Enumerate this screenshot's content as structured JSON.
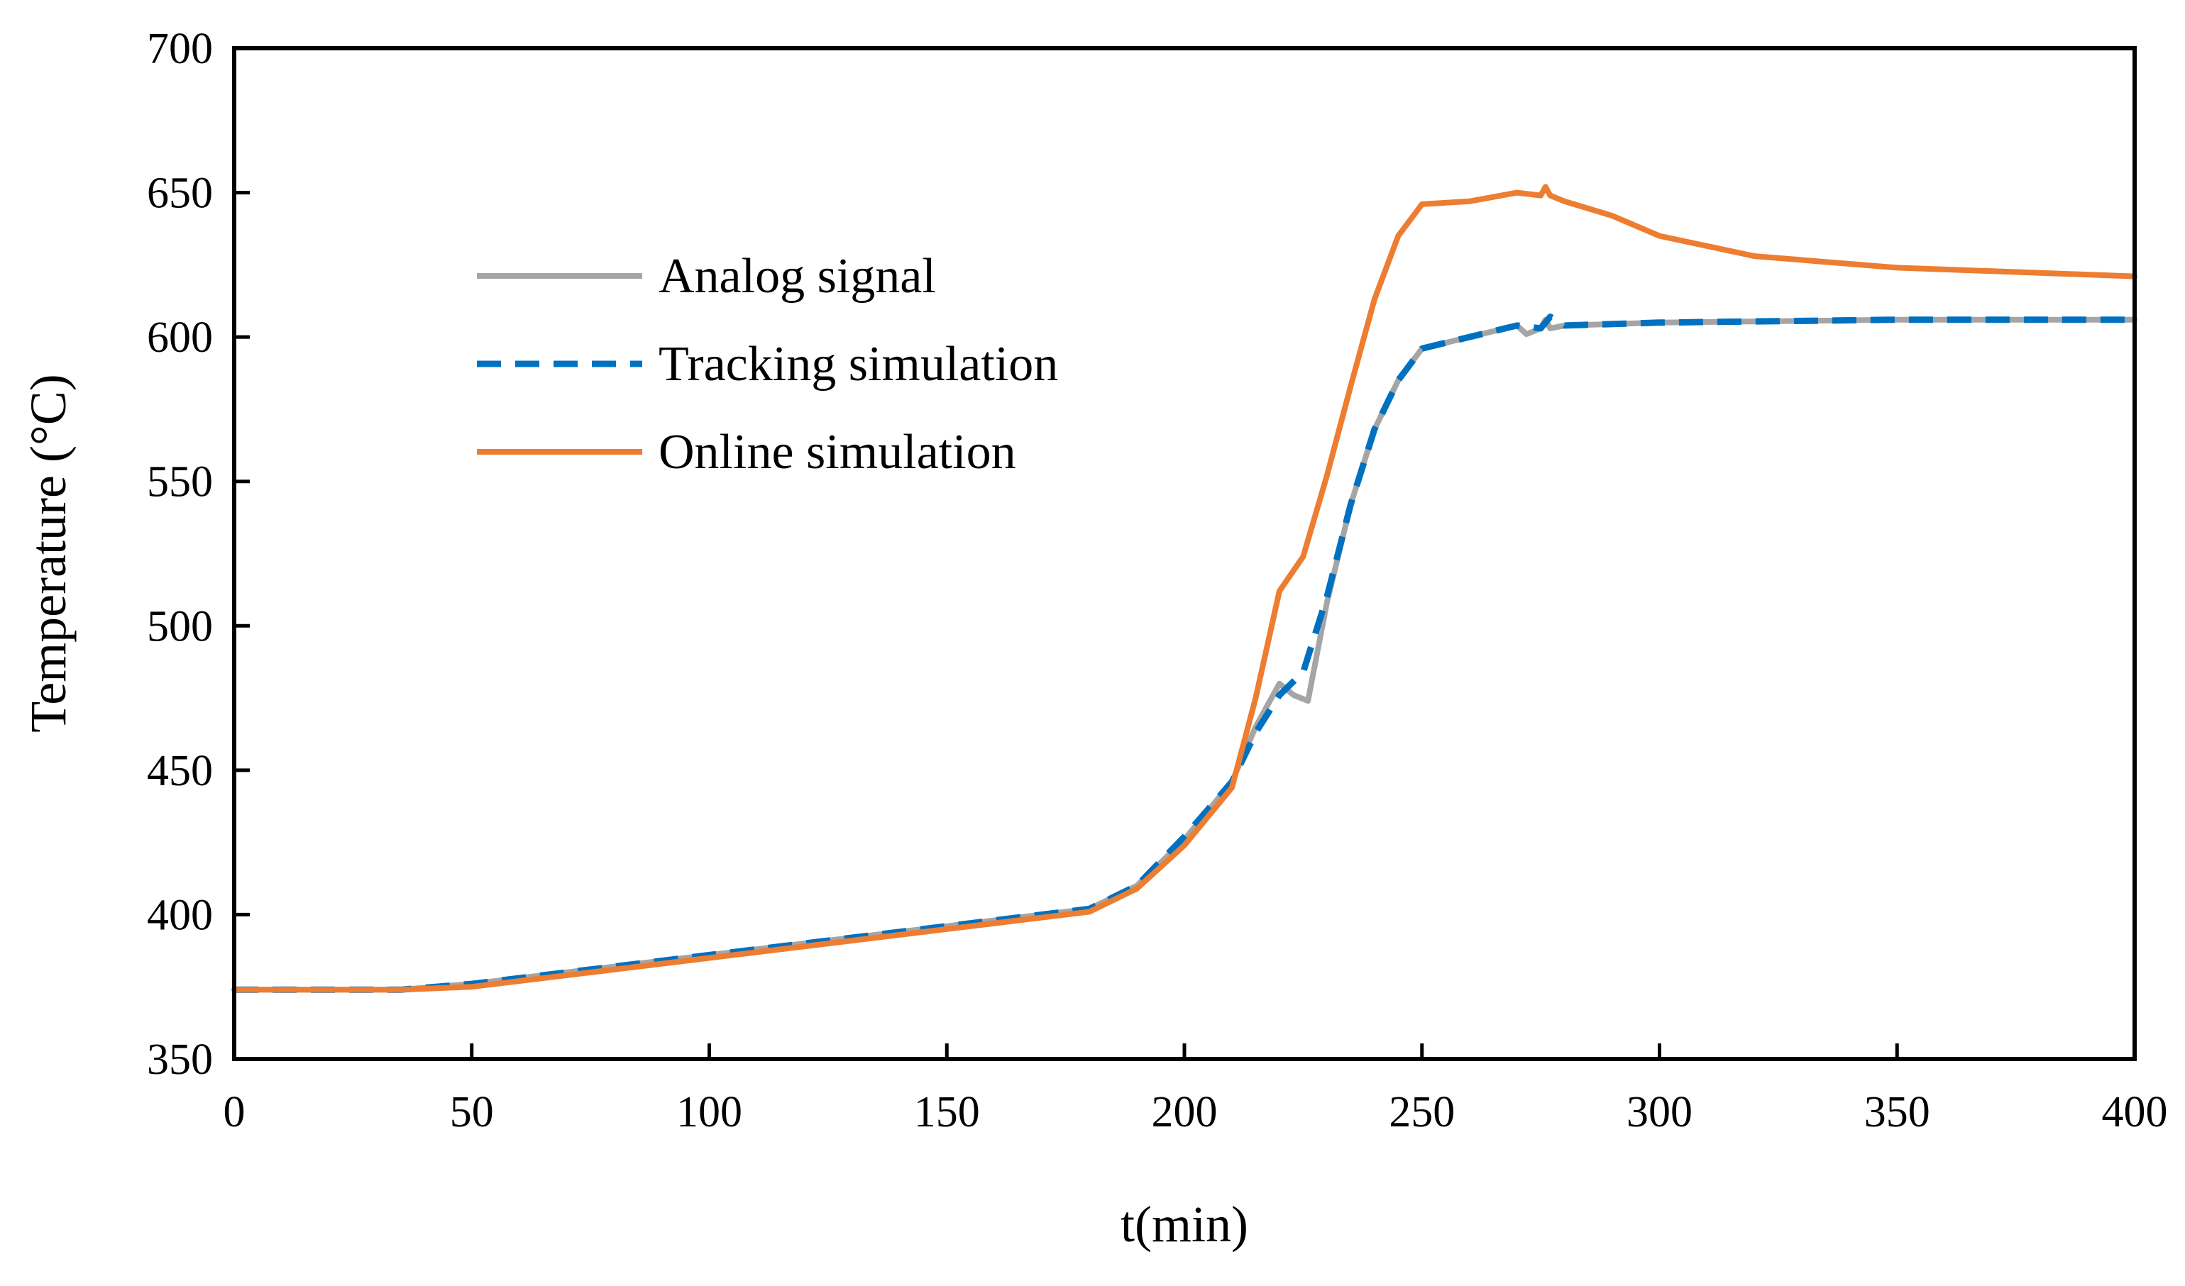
{
  "chart_data": {
    "type": "line",
    "title": "",
    "xlabel": "t(min)",
    "ylabel": "Temperature (°C)",
    "xlim": [
      0,
      400
    ],
    "ylim": [
      350,
      700
    ],
    "xticks": [
      0,
      50,
      100,
      150,
      200,
      250,
      300,
      350,
      400
    ],
    "yticks": [
      350,
      400,
      450,
      500,
      550,
      600,
      650,
      700
    ],
    "grid": false,
    "legend_position": "upper-left",
    "series": [
      {
        "name": "Analog signal",
        "color": "#A5A5A5",
        "style": "solid",
        "x": [
          0,
          35,
          50,
          100,
          150,
          180,
          190,
          200,
          210,
          215,
          220,
          223,
          226,
          230,
          235,
          240,
          245,
          250,
          260,
          270,
          272,
          275,
          276,
          277,
          280,
          300,
          350,
          400
        ],
        "y": [
          374,
          374,
          376,
          386,
          396,
          402,
          410,
          426,
          446,
          465,
          480,
          476,
          474,
          508,
          542,
          568,
          585,
          596,
          600,
          604,
          601,
          603,
          606,
          603,
          604,
          605,
          606,
          606
        ]
      },
      {
        "name": "Tracking simulation",
        "color": "#0070C0",
        "style": "dashed",
        "x": [
          0,
          35,
          50,
          100,
          150,
          180,
          190,
          200,
          210,
          215,
          220,
          225,
          230,
          235,
          240,
          245,
          250,
          260,
          270,
          275,
          277,
          280,
          300,
          350,
          400
        ],
        "y": [
          374,
          374,
          376,
          386,
          396,
          402,
          410,
          427,
          446,
          463,
          476,
          484,
          510,
          542,
          568,
          585,
          596,
          600,
          604,
          603,
          607,
          604,
          605,
          606,
          606
        ]
      },
      {
        "name": "Online simulation",
        "color": "#ED7D31",
        "style": "solid",
        "x": [
          0,
          35,
          50,
          100,
          150,
          180,
          190,
          200,
          210,
          215,
          220,
          225,
          230,
          235,
          240,
          245,
          250,
          260,
          270,
          275,
          276,
          277,
          280,
          290,
          300,
          320,
          350,
          400
        ],
        "y": [
          374,
          374,
          375,
          385,
          395,
          401,
          409,
          424,
          444,
          475,
          512,
          524,
          552,
          583,
          613,
          635,
          646,
          647,
          650,
          649,
          652,
          649,
          647,
          642,
          635,
          628,
          624,
          621
        ]
      }
    ]
  }
}
